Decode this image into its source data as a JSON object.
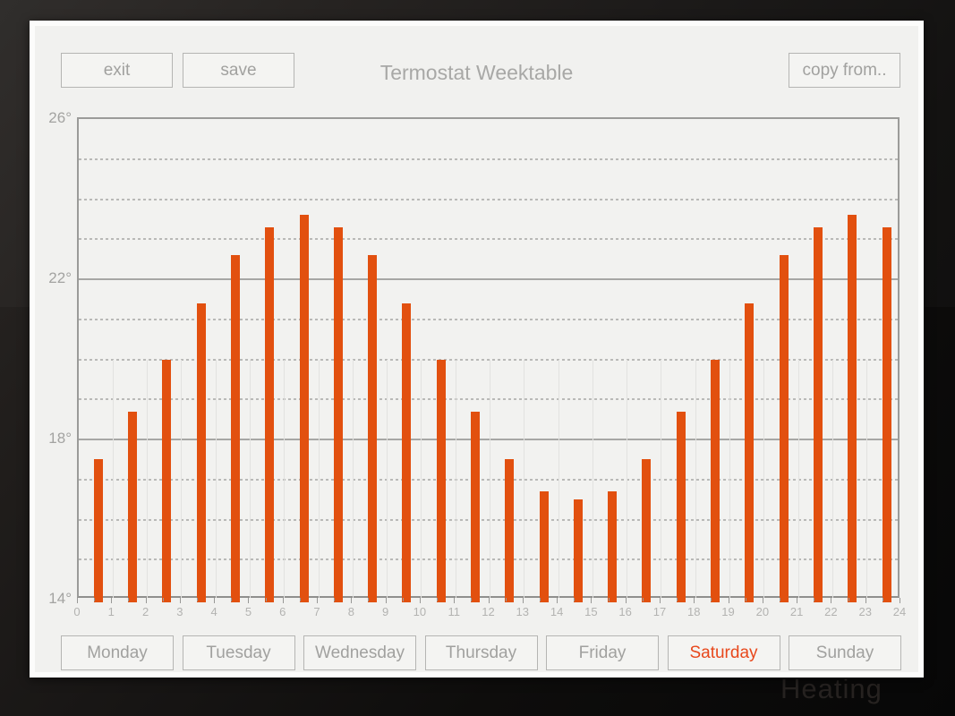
{
  "background": {
    "faint_text": "Heating"
  },
  "header": {
    "exit_label": "exit",
    "save_label": "save",
    "title": "Termostat Weektable",
    "copy_from_label": "copy from.."
  },
  "chart_data": {
    "type": "bar",
    "title": "Termostat Weektable",
    "x_hours": [
      0,
      1,
      2,
      3,
      4,
      5,
      6,
      7,
      8,
      9,
      10,
      11,
      12,
      13,
      14,
      15,
      16,
      17,
      18,
      19,
      20,
      21,
      22,
      23
    ],
    "values": [
      17.5,
      18.7,
      20.0,
      21.4,
      22.6,
      23.3,
      23.6,
      23.3,
      22.6,
      21.4,
      20.0,
      18.7,
      17.5,
      16.7,
      16.5,
      16.7,
      17.5,
      18.7,
      20.0,
      21.4,
      22.6,
      23.3,
      23.6,
      23.3
    ],
    "x_tick_labels": [
      "0",
      "1",
      "2",
      "3",
      "4",
      "5",
      "6",
      "7",
      "8",
      "9",
      "10",
      "11",
      "12",
      "13",
      "14",
      "15",
      "16",
      "17",
      "18",
      "19",
      "20",
      "21",
      "22",
      "23",
      "24"
    ],
    "y_major_ticks": [
      26,
      22,
      18,
      14
    ],
    "y_tick_labels": [
      "26°",
      "22°",
      "18°",
      "14°"
    ],
    "ylim": [
      14,
      26
    ],
    "grid": {
      "dashed_minor_every_degree": true,
      "solid_major_every_4_degrees": true,
      "legend": "none"
    },
    "bar_color": "#e2500f"
  },
  "days": {
    "items": [
      {
        "label": "Monday",
        "selected": false
      },
      {
        "label": "Tuesday",
        "selected": false
      },
      {
        "label": "Wednesday",
        "selected": false
      },
      {
        "label": "Thursday",
        "selected": false
      },
      {
        "label": "Friday",
        "selected": false
      },
      {
        "label": "Saturday",
        "selected": true
      },
      {
        "label": "Sunday",
        "selected": false
      }
    ],
    "selected_text_color": "#e8481c"
  },
  "colors": {
    "bar": "#e2500f",
    "panel_background": "#f1f1ef",
    "button_border": "#b5b5b3",
    "muted_text": "#a1a19f",
    "grid_solid": "#a7a7a5",
    "grid_dashed": "#b9b9b7",
    "axis_tick_text": "#b3b3b1"
  }
}
